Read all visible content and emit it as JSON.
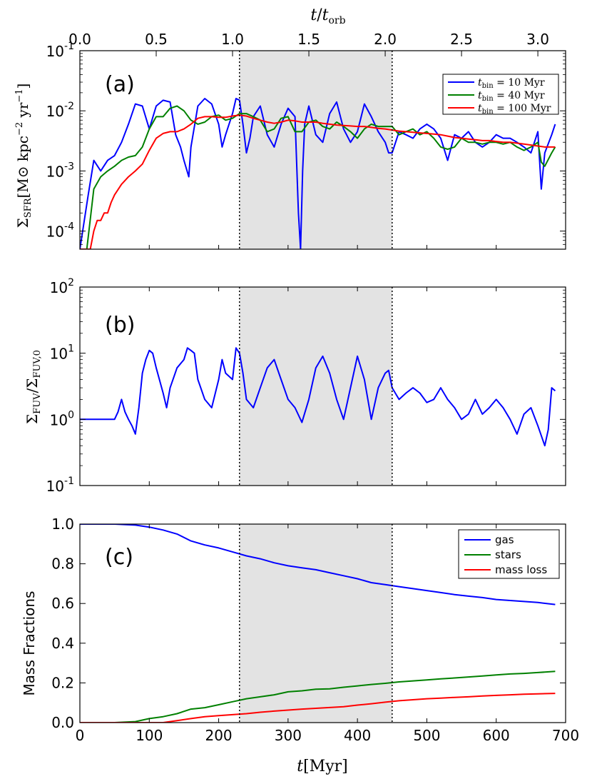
{
  "chart_data": [
    {
      "panel": "(a)",
      "type": "line",
      "top_axis": {
        "label": "t/t_orb",
        "ticks": [
          "0.0",
          "0.5",
          "1.0",
          "1.5",
          "2.0",
          "2.5",
          "3.0"
        ],
        "tick_values": [
          0.0,
          0.5,
          1.0,
          1.5,
          2.0,
          2.5,
          3.0
        ],
        "myr_per_orbit": 220
      },
      "ylabel": "Σ_SFR [M_⊙ kpc^-2 yr^-1]",
      "yscale": "log",
      "ylim": [
        5e-05,
        0.1
      ],
      "yticks": [
        {
          "value": 0.1,
          "base": "10",
          "exp": "-1"
        },
        {
          "value": 0.01,
          "base": "10",
          "exp": "-2"
        },
        {
          "value": 0.001,
          "base": "10",
          "exp": "-3"
        },
        {
          "value": 0.0001,
          "base": "10",
          "exp": "-4"
        }
      ],
      "legend": {
        "placement": "top-right",
        "entries": [
          "t_bin = 10 Myr",
          "t_bin = 40 Myr",
          "t_bin = 100 Myr"
        ]
      },
      "series": [
        {
          "name": "t_bin = 10 Myr",
          "color": "#0000ff",
          "x": [
            0,
            12,
            20,
            30,
            40,
            50,
            60,
            70,
            80,
            90,
            100,
            110,
            120,
            130,
            138,
            145,
            150,
            157,
            160,
            170,
            180,
            190,
            200,
            205,
            210,
            220,
            225,
            230,
            235,
            240,
            245,
            250,
            260,
            270,
            280,
            290,
            300,
            310,
            315,
            318,
            321,
            324,
            330,
            340,
            350,
            360,
            370,
            380,
            390,
            400,
            410,
            420,
            430,
            440,
            445,
            450,
            460,
            470,
            480,
            490,
            500,
            510,
            520,
            530,
            540,
            550,
            560,
            570,
            580,
            590,
            600,
            610,
            620,
            630,
            640,
            650,
            660,
            665,
            670,
            680,
            685
          ],
          "y": [
            5e-05,
            0.0004,
            0.0015,
            0.001,
            0.0015,
            0.0018,
            0.003,
            0.006,
            0.013,
            0.012,
            0.005,
            0.012,
            0.015,
            0.014,
            0.004,
            0.0025,
            0.0015,
            0.0008,
            0.0025,
            0.012,
            0.016,
            0.013,
            0.006,
            0.0025,
            0.004,
            0.009,
            0.016,
            0.015,
            0.006,
            0.002,
            0.0035,
            0.008,
            0.012,
            0.004,
            0.0025,
            0.006,
            0.011,
            0.008,
            0.0002,
            5e-05,
            0.001,
            0.006,
            0.012,
            0.004,
            0.003,
            0.009,
            0.014,
            0.005,
            0.003,
            0.0045,
            0.013,
            0.008,
            0.0045,
            0.003,
            0.002,
            0.002,
            0.0045,
            0.004,
            0.0035,
            0.005,
            0.006,
            0.005,
            0.0035,
            0.0015,
            0.004,
            0.0035,
            0.0045,
            0.003,
            0.0025,
            0.003,
            0.004,
            0.0035,
            0.0035,
            0.003,
            0.0025,
            0.002,
            0.0045,
            0.0005,
            0.002,
            0.004,
            0.006
          ]
        },
        {
          "name": "t_bin = 40 Myr",
          "color": "#008000",
          "x": [
            0,
            10,
            20,
            30,
            40,
            50,
            60,
            70,
            80,
            90,
            100,
            110,
            120,
            130,
            140,
            150,
            160,
            170,
            180,
            190,
            200,
            210,
            220,
            230,
            240,
            250,
            260,
            270,
            280,
            290,
            300,
            310,
            320,
            330,
            340,
            350,
            360,
            370,
            380,
            390,
            400,
            410,
            420,
            430,
            440,
            450,
            460,
            470,
            480,
            490,
            500,
            510,
            520,
            530,
            540,
            550,
            560,
            570,
            580,
            590,
            600,
            610,
            620,
            630,
            640,
            650,
            660,
            665,
            670,
            680,
            685
          ],
          "y": [
            5e-05,
            5e-05,
            0.0005,
            0.0008,
            0.001,
            0.0012,
            0.0015,
            0.0017,
            0.0018,
            0.0025,
            0.005,
            0.008,
            0.008,
            0.011,
            0.012,
            0.01,
            0.007,
            0.006,
            0.0065,
            0.008,
            0.0085,
            0.007,
            0.0075,
            0.009,
            0.009,
            0.008,
            0.007,
            0.0045,
            0.005,
            0.0075,
            0.008,
            0.0045,
            0.0045,
            0.0065,
            0.007,
            0.0055,
            0.005,
            0.0065,
            0.0055,
            0.0045,
            0.0035,
            0.005,
            0.006,
            0.0055,
            0.0055,
            0.0055,
            0.004,
            0.0045,
            0.005,
            0.004,
            0.0045,
            0.0035,
            0.0025,
            0.0023,
            0.0025,
            0.0035,
            0.003,
            0.003,
            0.0028,
            0.003,
            0.003,
            0.0028,
            0.003,
            0.0025,
            0.0022,
            0.0025,
            0.003,
            0.0014,
            0.0012,
            0.002,
            0.0025
          ]
        },
        {
          "name": "t_bin = 100 Myr",
          "color": "#ff0000",
          "x": [
            0,
            10,
            15,
            20,
            25,
            30,
            35,
            40,
            45,
            50,
            60,
            70,
            80,
            90,
            100,
            110,
            120,
            130,
            140,
            150,
            160,
            170,
            180,
            190,
            200,
            210,
            220,
            230,
            240,
            250,
            260,
            270,
            280,
            290,
            300,
            310,
            320,
            330,
            340,
            350,
            360,
            370,
            380,
            390,
            400,
            410,
            420,
            430,
            440,
            450,
            460,
            470,
            480,
            490,
            500,
            510,
            520,
            530,
            540,
            550,
            560,
            570,
            580,
            590,
            600,
            610,
            620,
            630,
            640,
            650,
            660,
            670,
            680,
            685
          ],
          "y": [
            5e-05,
            5e-05,
            5e-05,
            0.0001,
            0.00015,
            0.00015,
            0.0002,
            0.0002,
            0.0003,
            0.0004,
            0.0006,
            0.0008,
            0.001,
            0.0013,
            0.0022,
            0.0035,
            0.0042,
            0.0045,
            0.0045,
            0.005,
            0.006,
            0.0075,
            0.008,
            0.008,
            0.0078,
            0.0078,
            0.0082,
            0.0085,
            0.0082,
            0.0075,
            0.007,
            0.0065,
            0.0062,
            0.0065,
            0.007,
            0.0068,
            0.0065,
            0.0065,
            0.0065,
            0.0062,
            0.006,
            0.0058,
            0.0057,
            0.0056,
            0.0055,
            0.0055,
            0.0053,
            0.0051,
            0.005,
            0.0048,
            0.0046,
            0.0045,
            0.0044,
            0.0043,
            0.0042,
            0.0041,
            0.004,
            0.0038,
            0.0036,
            0.0035,
            0.0034,
            0.0033,
            0.0032,
            0.0032,
            0.0031,
            0.003,
            0.003,
            0.0029,
            0.0028,
            0.0027,
            0.0026,
            0.0025,
            0.0025,
            0.0025
          ]
        }
      ]
    },
    {
      "panel": "(b)",
      "type": "line",
      "ylabel": "Σ_FUV / Σ_FUV,0",
      "yscale": "log",
      "ylim": [
        0.1,
        100
      ],
      "yticks": [
        {
          "value": 100,
          "base": "10",
          "exp": "2"
        },
        {
          "value": 10,
          "base": "10",
          "exp": "1"
        },
        {
          "value": 1,
          "base": "10",
          "exp": "0"
        },
        {
          "value": 0.1,
          "base": "10",
          "exp": "-1"
        }
      ],
      "series": [
        {
          "name": "FUV ratio",
          "color": "#0000ff",
          "x": [
            0,
            40,
            50,
            55,
            60,
            65,
            70,
            75,
            80,
            85,
            90,
            95,
            100,
            105,
            110,
            120,
            125,
            130,
            140,
            150,
            155,
            160,
            165,
            170,
            180,
            190,
            200,
            205,
            210,
            220,
            225,
            230,
            235,
            240,
            250,
            260,
            270,
            280,
            290,
            300,
            310,
            320,
            330,
            340,
            350,
            360,
            370,
            380,
            390,
            400,
            410,
            420,
            430,
            440,
            445,
            450,
            460,
            470,
            480,
            490,
            500,
            510,
            520,
            530,
            540,
            550,
            560,
            570,
            580,
            590,
            600,
            610,
            620,
            630,
            640,
            650,
            660,
            670,
            675,
            680,
            685
          ],
          "y": [
            1.0,
            1.0,
            1.0,
            1.3,
            2.0,
            1.3,
            1.0,
            0.8,
            0.6,
            1.5,
            5.0,
            8.0,
            11.0,
            10.0,
            6.0,
            2.5,
            1.5,
            3.0,
            6.0,
            8.0,
            12.0,
            11.0,
            10.0,
            4.0,
            2.0,
            1.5,
            4.0,
            8.0,
            5.0,
            4.0,
            12.0,
            10.0,
            5.0,
            2.0,
            1.5,
            3.0,
            6.0,
            8.0,
            4.0,
            2.0,
            1.5,
            0.9,
            2.0,
            6.0,
            9.0,
            5.0,
            2.0,
            1.0,
            3.0,
            9.0,
            4.0,
            1.0,
            3.0,
            5.0,
            5.5,
            3.0,
            2.0,
            2.5,
            3.0,
            2.5,
            1.8,
            2.0,
            3.0,
            2.0,
            1.5,
            1.0,
            1.2,
            2.0,
            1.2,
            1.5,
            2.0,
            1.5,
            1.0,
            0.6,
            1.2,
            1.5,
            0.8,
            0.4,
            0.7,
            3.0,
            2.7
          ]
        }
      ]
    },
    {
      "panel": "(c)",
      "type": "line",
      "ylabel": "Mass Fractions",
      "xlabel": "t[Myr]",
      "ylim": [
        0.0,
        1.0
      ],
      "xlim": [
        0,
        700
      ],
      "yticks": [
        "0.0",
        "0.2",
        "0.4",
        "0.6",
        "0.8",
        "1.0"
      ],
      "ytick_values": [
        0.0,
        0.2,
        0.4,
        0.6,
        0.8,
        1.0
      ],
      "xticks": [
        "0",
        "100",
        "200",
        "300",
        "400",
        "500",
        "600",
        "700"
      ],
      "xtick_values": [
        0,
        100,
        200,
        300,
        400,
        500,
        600,
        700
      ],
      "legend": {
        "placement": "top-right",
        "entries": [
          "gas",
          "stars",
          "mass loss"
        ]
      },
      "series": [
        {
          "name": "gas",
          "color": "#0000ff",
          "x": [
            0,
            50,
            80,
            100,
            120,
            140,
            160,
            180,
            200,
            220,
            240,
            260,
            280,
            300,
            320,
            340,
            360,
            380,
            400,
            420,
            440,
            460,
            480,
            500,
            520,
            540,
            560,
            580,
            600,
            620,
            640,
            660,
            685
          ],
          "y": [
            1.0,
            1.0,
            0.995,
            0.985,
            0.97,
            0.95,
            0.915,
            0.895,
            0.88,
            0.86,
            0.84,
            0.825,
            0.805,
            0.79,
            0.78,
            0.77,
            0.755,
            0.74,
            0.725,
            0.705,
            0.695,
            0.685,
            0.675,
            0.665,
            0.655,
            0.645,
            0.637,
            0.63,
            0.62,
            0.615,
            0.61,
            0.605,
            0.595
          ]
        },
        {
          "name": "stars",
          "color": "#008000",
          "x": [
            0,
            50,
            80,
            100,
            120,
            140,
            160,
            180,
            200,
            220,
            240,
            260,
            280,
            300,
            320,
            340,
            360,
            380,
            400,
            420,
            440,
            460,
            480,
            500,
            520,
            540,
            560,
            580,
            600,
            620,
            640,
            660,
            685
          ],
          "y": [
            0.0,
            0.0,
            0.005,
            0.02,
            0.03,
            0.045,
            0.068,
            0.075,
            0.09,
            0.105,
            0.12,
            0.13,
            0.14,
            0.155,
            0.16,
            0.168,
            0.17,
            0.178,
            0.185,
            0.192,
            0.198,
            0.205,
            0.21,
            0.215,
            0.22,
            0.225,
            0.23,
            0.235,
            0.24,
            0.245,
            0.248,
            0.252,
            0.258
          ]
        },
        {
          "name": "mass loss",
          "color": "#ff0000",
          "x": [
            0,
            120,
            140,
            160,
            180,
            200,
            220,
            240,
            260,
            280,
            300,
            320,
            340,
            360,
            380,
            400,
            420,
            440,
            460,
            480,
            500,
            520,
            540,
            560,
            580,
            600,
            620,
            640,
            660,
            685
          ],
          "y": [
            0.0,
            0.0,
            0.01,
            0.02,
            0.03,
            0.035,
            0.04,
            0.045,
            0.052,
            0.058,
            0.063,
            0.068,
            0.072,
            0.076,
            0.08,
            0.088,
            0.095,
            0.103,
            0.11,
            0.115,
            0.12,
            0.123,
            0.127,
            0.13,
            0.134,
            0.137,
            0.14,
            0.143,
            0.145,
            0.147
          ]
        }
      ]
    }
  ],
  "shaded_region": {
    "x_start": 230,
    "x_end": 450,
    "color": "#e3e3e3",
    "boundary_style": "dotted"
  },
  "labels": {
    "top_axis_t": "t",
    "top_axis_sub": "orb",
    "panel_a": "(a)",
    "panel_b": "(b)",
    "panel_c": "(c)",
    "ylabel_a_sigma": "Σ",
    "ylabel_a_sub": "SFR",
    "ylabel_a_units": "[M",
    "ylabel_a_sun": "⊙",
    "ylabel_a_kpc": " kpc",
    "ylabel_a_kpc_exp": "−2",
    "ylabel_a_yr": " yr",
    "ylabel_a_yr_exp": "−1",
    "ylabel_a_close": "]",
    "ylabel_b_sigma1": "Σ",
    "ylabel_b_sub1": "FUV",
    "ylabel_b_slash": "/Σ",
    "ylabel_b_sub2": "FUV,0",
    "ylabel_c": "Mass Fractions",
    "xlabel_t": "t",
    "xlabel_units": "[Myr]",
    "legend_a": [
      {
        "t": "t",
        "sub": "bin",
        "rest": " = 10 Myr"
      },
      {
        "t": "t",
        "sub": "bin",
        "rest": " = 40 Myr"
      },
      {
        "t": "t",
        "sub": "bin",
        "rest": " = 100 Myr"
      }
    ],
    "legend_c": [
      "gas",
      "stars",
      "mass loss"
    ]
  }
}
